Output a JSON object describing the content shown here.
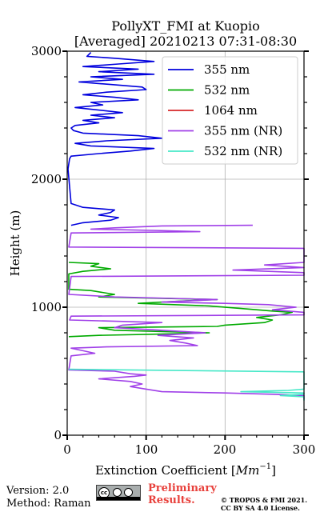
{
  "chart_data": {
    "type": "line",
    "title": "PollyXT_FMI at Kuopio",
    "subtitle": "[Averaged] 20210213 07:31-08:30",
    "xlabel": "Extinction Coefficient [",
    "xlabel_unit": "Mm",
    "xlabel_exp": "−1",
    "xlabel_close": "]",
    "ylabel": "Height (m)",
    "xlim": [
      0,
      300
    ],
    "ylim": [
      0,
      3000
    ],
    "x_ticks": [
      "0",
      "100",
      "200",
      "300"
    ],
    "y_ticks": [
      "0",
      "1000",
      "2000",
      "3000"
    ],
    "grid": true,
    "legend_position": "top-right",
    "series": [
      {
        "name": "355 nm",
        "color": "#0000dd",
        "points": [
          [
            30,
            2990
          ],
          [
            25,
            2960
          ],
          [
            60,
            2945
          ],
          [
            110,
            2920
          ],
          [
            65,
            2900
          ],
          [
            20,
            2880
          ],
          [
            90,
            2860
          ],
          [
            40,
            2840
          ],
          [
            110,
            2820
          ],
          [
            30,
            2800
          ],
          [
            70,
            2780
          ],
          [
            15,
            2760
          ],
          [
            55,
            2740
          ],
          [
            95,
            2720
          ],
          [
            100,
            2700
          ],
          [
            50,
            2680
          ],
          [
            20,
            2660
          ],
          [
            60,
            2640
          ],
          [
            90,
            2620
          ],
          [
            30,
            2600
          ],
          [
            45,
            2580
          ],
          [
            10,
            2560
          ],
          [
            40,
            2540
          ],
          [
            70,
            2520
          ],
          [
            30,
            2500
          ],
          [
            60,
            2480
          ],
          [
            20,
            2460
          ],
          [
            40,
            2440
          ],
          [
            10,
            2420
          ],
          [
            5,
            2400
          ],
          [
            8,
            2380
          ],
          [
            20,
            2360
          ],
          [
            90,
            2340
          ],
          [
            120,
            2320
          ],
          [
            50,
            2300
          ],
          [
            10,
            2280
          ],
          [
            30,
            2260
          ],
          [
            110,
            2240
          ],
          [
            80,
            2220
          ],
          [
            40,
            2200
          ],
          [
            5,
            2180
          ],
          [
            3,
            2160
          ],
          [
            2,
            2120
          ],
          [
            1,
            2080
          ],
          [
            5,
            1810
          ],
          [
            10,
            1800
          ],
          [
            20,
            1780
          ],
          [
            60,
            1760
          ],
          [
            55,
            1740
          ],
          [
            40,
            1720
          ],
          [
            65,
            1700
          ],
          [
            55,
            1680
          ],
          [
            20,
            1660
          ],
          [
            5,
            1640
          ]
        ]
      },
      {
        "name": "532 nm",
        "color": "#00aa00",
        "points": [
          [
            2,
            1350
          ],
          [
            40,
            1340
          ],
          [
            30,
            1320
          ],
          [
            55,
            1300
          ],
          [
            20,
            1280
          ],
          [
            2,
            1260
          ],
          [
            2,
            1140
          ],
          [
            30,
            1130
          ],
          [
            60,
            1100
          ],
          [
            40,
            1080
          ],
          [
            190,
            1060
          ],
          [
            150,
            1050
          ],
          [
            90,
            1030
          ],
          [
            180,
            1010
          ],
          [
            220,
            990
          ],
          [
            260,
            970
          ],
          [
            285,
            960
          ],
          [
            270,
            940
          ],
          [
            240,
            920
          ],
          [
            260,
            900
          ],
          [
            250,
            880
          ],
          [
            200,
            860
          ],
          [
            190,
            850
          ],
          [
            40,
            840
          ],
          [
            60,
            820
          ],
          [
            180,
            800
          ],
          [
            120,
            790
          ],
          [
            40,
            780
          ],
          [
            2,
            770
          ]
        ]
      },
      {
        "name": "1064 nm",
        "color": "#d62728",
        "points": []
      },
      {
        "name": "355 nm (NR)",
        "color": "#a040e8",
        "points": [
          [
            235,
            1640
          ],
          [
            120,
            1635
          ],
          [
            60,
            1620
          ],
          [
            30,
            1610
          ],
          [
            110,
            1600
          ],
          [
            168,
            1590
          ],
          [
            5,
            1580
          ],
          [
            2,
            1470
          ],
          [
            300,
            1460
          ],
          [
            300,
            1350
          ],
          [
            250,
            1330
          ],
          [
            300,
            1310
          ],
          [
            210,
            1290
          ],
          [
            300,
            1270
          ],
          [
            300,
            1250
          ],
          [
            5,
            1240
          ],
          [
            2,
            1100
          ],
          [
            60,
            1080
          ],
          [
            190,
            1060
          ],
          [
            120,
            1040
          ],
          [
            200,
            1030
          ],
          [
            255,
            1020
          ],
          [
            290,
            1000
          ],
          [
            260,
            980
          ],
          [
            300,
            960
          ],
          [
            300,
            940
          ],
          [
            5,
            930
          ],
          [
            3,
            900
          ],
          [
            120,
            880
          ],
          [
            70,
            860
          ],
          [
            60,
            840
          ],
          [
            120,
            820
          ],
          [
            175,
            800
          ],
          [
            115,
            780
          ],
          [
            160,
            760
          ],
          [
            130,
            740
          ],
          [
            150,
            720
          ],
          [
            165,
            700
          ],
          [
            50,
            690
          ],
          [
            5,
            680
          ],
          [
            20,
            660
          ],
          [
            35,
            640
          ],
          [
            5,
            620
          ],
          [
            3,
            550
          ],
          [
            2,
            510
          ],
          [
            60,
            500
          ],
          [
            80,
            480
          ],
          [
            100,
            470
          ],
          [
            85,
            460
          ],
          [
            40,
            440
          ],
          [
            80,
            420
          ],
          [
            95,
            400
          ],
          [
            80,
            380
          ],
          [
            100,
            360
          ],
          [
            120,
            340
          ],
          [
            200,
            330
          ],
          [
            260,
            320
          ],
          [
            300,
            310
          ],
          [
            300,
            280
          ]
        ]
      },
      {
        "name": "532 nm (NR)",
        "color": "#48e8c8",
        "points": [
          [
            2,
            515
          ],
          [
            150,
            505
          ],
          [
            300,
            495
          ],
          [
            300,
            480
          ],
          [
            300,
            360
          ],
          [
            280,
            350
          ],
          [
            220,
            340
          ],
          [
            300,
            330
          ],
          [
            300,
            320
          ],
          [
            270,
            310
          ],
          [
            300,
            300
          ],
          [
            300,
            270
          ]
        ]
      }
    ]
  },
  "footer": {
    "version": "Version: 2.0",
    "method": "Method: Raman",
    "preliminary_line1": "Preliminary",
    "preliminary_line2": "Results.",
    "copyright_line1": "© TROPOS & FMI 2021.",
    "copyright_line2": "CC BY SA 4.0 License."
  },
  "license_icon": "cc-by-sa-badge"
}
